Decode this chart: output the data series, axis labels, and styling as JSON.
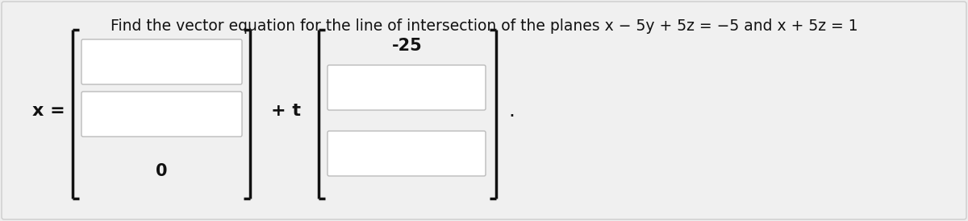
{
  "title": "Find the vector equation for the line of intersection of the planes $x - 5y + 5z = -5$ and $x + 5z = 1$",
  "title_plain": "Find the vector equation for the line of intersection of the planes x − 5y + 5z = −5 and x + 5z = 1",
  "x_label": "x =",
  "plus_t": "+ t",
  "vec1_entries": [
    "",
    "",
    "0"
  ],
  "vec2_top": "-25",
  "bg_color": "#eeeeee",
  "box_color": "#ffffff",
  "box_border": "#bbbbbb",
  "bracket_color": "#111111",
  "text_color": "#111111",
  "title_fontsize": 13.5,
  "label_fontsize": 16,
  "entry_fontsize": 15,
  "dot_fontsize": 18
}
